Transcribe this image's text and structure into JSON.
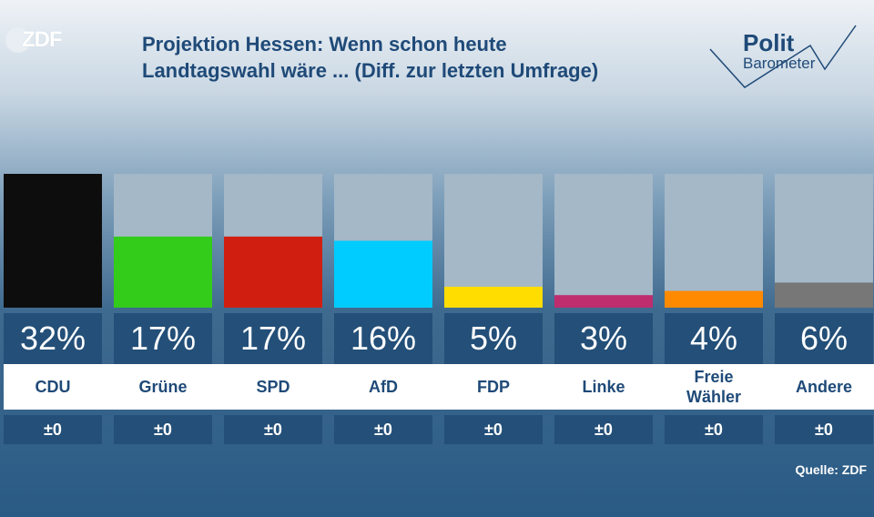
{
  "header": {
    "logo": "ZDF",
    "title_line1": "Projektion Hessen: Wenn schon heute",
    "title_line2": "Landtagswahl wäre ... (Diff. zur letzten Umfrage)",
    "brand_line1": "Polit",
    "brand_line2": "Barometer"
  },
  "colors": {
    "CDU": "#0d0d0d",
    "Grüne": "#33cc1a",
    "SPD": "#d01f10",
    "AfD": "#00ccff",
    "FDP": "#ffdd00",
    "Linke": "#be2d6e",
    "Freie Wähler": "#ff8a00",
    "Andere": "#777777",
    "bar_background": "#a4b8c8",
    "value_box": "#234f78"
  },
  "chart_data": {
    "type": "bar",
    "categories": [
      "CDU",
      "Grüne",
      "SPD",
      "AfD",
      "FDP",
      "Linke",
      "Freie Wähler",
      "Andere"
    ],
    "values": [
      32,
      17,
      17,
      16,
      5,
      3,
      4,
      6
    ],
    "value_labels": [
      "32%",
      "17%",
      "17%",
      "16%",
      "5%",
      "3%",
      "4%",
      "6%"
    ],
    "diff_labels": [
      "±0",
      "±0",
      "±0",
      "±0",
      "±0",
      "±0",
      "±0",
      "±0"
    ],
    "unit": "%",
    "ylim": [
      0,
      32
    ],
    "title": "Projektion Hessen: Wenn schon heute Landtagswahl wäre ... (Diff. zur letzten Umfrage)"
  },
  "footer": {
    "source": "Quelle: ZDF"
  }
}
